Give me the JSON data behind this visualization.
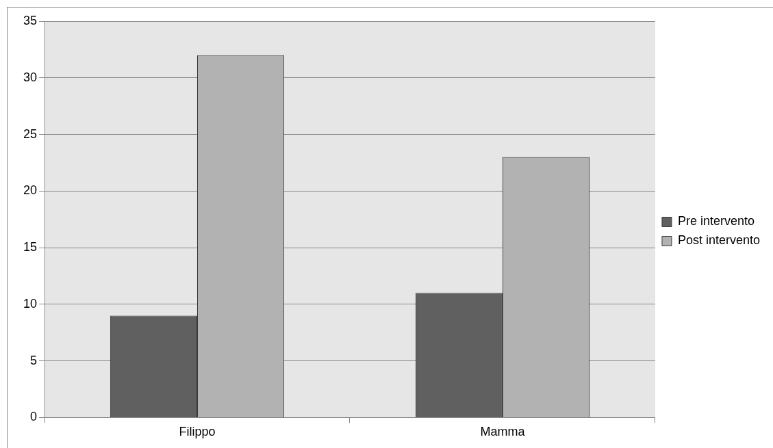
{
  "chart_data": {
    "type": "bar",
    "categories": [
      "Filippo",
      "Mamma"
    ],
    "series": [
      {
        "name": "Pre intervento",
        "color": "#606060",
        "values": [
          9,
          11
        ]
      },
      {
        "name": "Post intervento",
        "color": "#b2b2b2",
        "values": [
          32,
          23
        ]
      }
    ],
    "ylim": [
      0,
      35
    ],
    "yticks": [
      0,
      5,
      10,
      15,
      20,
      25,
      30,
      35
    ],
    "grid": "y",
    "legend": "right"
  }
}
